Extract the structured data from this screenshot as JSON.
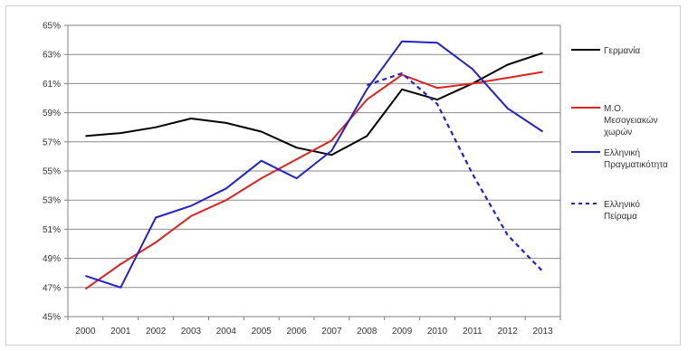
{
  "chart_data": {
    "type": "line",
    "title": "",
    "xlabel": "",
    "ylabel": "",
    "x": [
      "2000",
      "2001",
      "2002",
      "2003",
      "2004",
      "2005",
      "2006",
      "2007",
      "2008",
      "2009",
      "2010",
      "2011",
      "2012",
      "2013"
    ],
    "ylim": [
      45,
      65
    ],
    "yticks": [
      "45%",
      "47%",
      "49%",
      "51%",
      "53%",
      "55%",
      "57%",
      "59%",
      "61%",
      "63%",
      "65%"
    ],
    "grid": "horizontal",
    "legend_position": "right",
    "series": [
      {
        "name": "Γερμανία",
        "color": "#000000",
        "dashed": false,
        "values": [
          57.4,
          57.6,
          58.0,
          58.6,
          58.3,
          57.7,
          56.6,
          56.1,
          57.4,
          60.6,
          59.9,
          61.0,
          62.3,
          63.1
        ]
      },
      {
        "name": "Μ.Ο. Μεσογειακών χωρών",
        "legend_lines": [
          "Μ.Ο.",
          "Μεσογειακών",
          "χωρών"
        ],
        "color": "#dd2222",
        "dashed": false,
        "values": [
          46.9,
          48.6,
          50.1,
          51.9,
          53.0,
          54.5,
          55.8,
          57.1,
          59.9,
          61.6,
          60.7,
          61.0,
          61.4,
          61.8
        ]
      },
      {
        "name": "Ελληνική Πραγματικότητα",
        "legend_lines": [
          "Ελληνική",
          "Πραγματικότητα"
        ],
        "color": "#2222cc",
        "dashed": false,
        "values": [
          47.8,
          47.0,
          51.8,
          52.6,
          53.8,
          55.7,
          54.5,
          56.4,
          60.6,
          63.9,
          63.8,
          62.0,
          59.3,
          57.7
        ]
      },
      {
        "name": "Ελληνικό Πείραμα",
        "legend_lines": [
          "Ελληνικό",
          "Πείραμα"
        ],
        "color": "#2222cc",
        "dashed": true,
        "values": [
          null,
          null,
          null,
          null,
          null,
          null,
          null,
          null,
          60.9,
          61.7,
          59.6,
          54.8,
          50.6,
          48.1
        ]
      }
    ]
  }
}
